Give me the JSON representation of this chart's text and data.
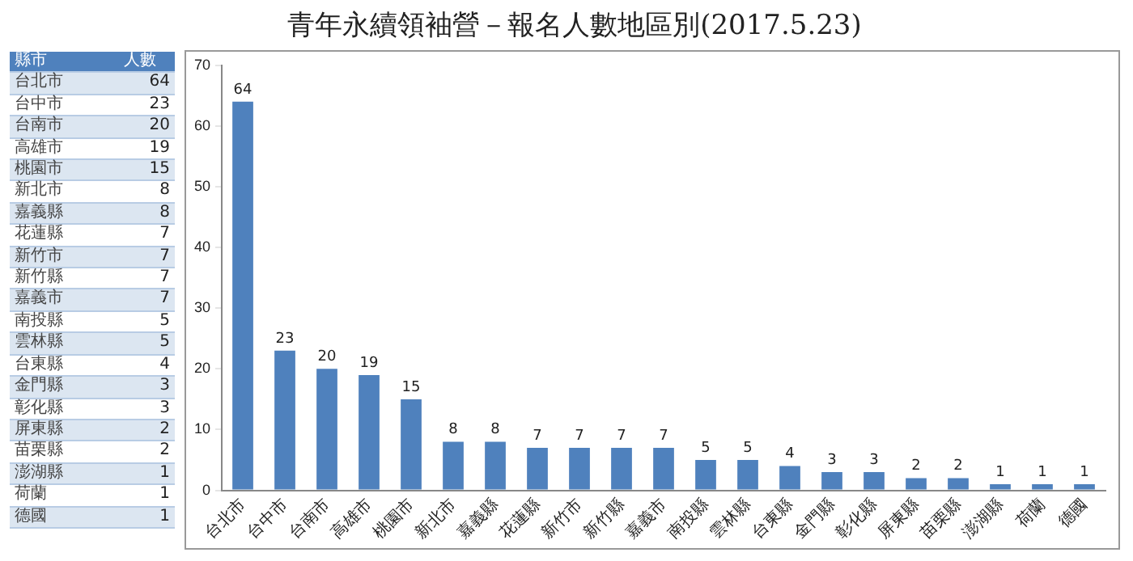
{
  "chart_data": [
    {
      "type": "other",
      "annotations": [
        "縣市",
        "人數"
      ],
      "categories": [
        "台北市",
        "台中市",
        "台南市",
        "高雄市",
        "桃園市",
        "新北市",
        "嘉義縣",
        "花蓮縣",
        "新竹市",
        "新竹縣",
        "嘉義市",
        "南投縣",
        "雲林縣",
        "台東縣",
        "金門縣",
        "彰化縣",
        "屏東縣",
        "苗栗縣",
        "澎湖縣",
        "荷蘭",
        "德國"
      ],
      "values": [
        64,
        23,
        20,
        19,
        15,
        8,
        8,
        7,
        7,
        7,
        7,
        5,
        5,
        4,
        3,
        3,
        2,
        2,
        1,
        1,
        1
      ],
      "data_labels": true
    },
    {
      "type": "bar",
      "title": "青年永續領袖營－報名人數地區別(2017.5.23)",
      "categories": [
        "台北市",
        "台中市",
        "台南市",
        "高雄市",
        "桃園市",
        "新北市",
        "嘉義縣",
        "花蓮縣",
        "新竹市",
        "新竹縣",
        "嘉義市",
        "南投縣",
        "雲林縣",
        "台東縣",
        "金門縣",
        "彰化縣",
        "屏東縣",
        "苗栗縣",
        "澎湖縣",
        "荷蘭",
        "德國"
      ],
      "values": [
        64,
        23,
        20,
        19,
        15,
        8,
        8,
        7,
        7,
        7,
        7,
        5,
        5,
        4,
        3,
        3,
        2,
        2,
        1,
        1,
        1
      ],
      "color": "#4f81bd",
      "ylim": [
        0,
        70
      ],
      "yticks": [
        0,
        10,
        20,
        30,
        40,
        50,
        60,
        70
      ],
      "data_labels": true
    }
  ]
}
